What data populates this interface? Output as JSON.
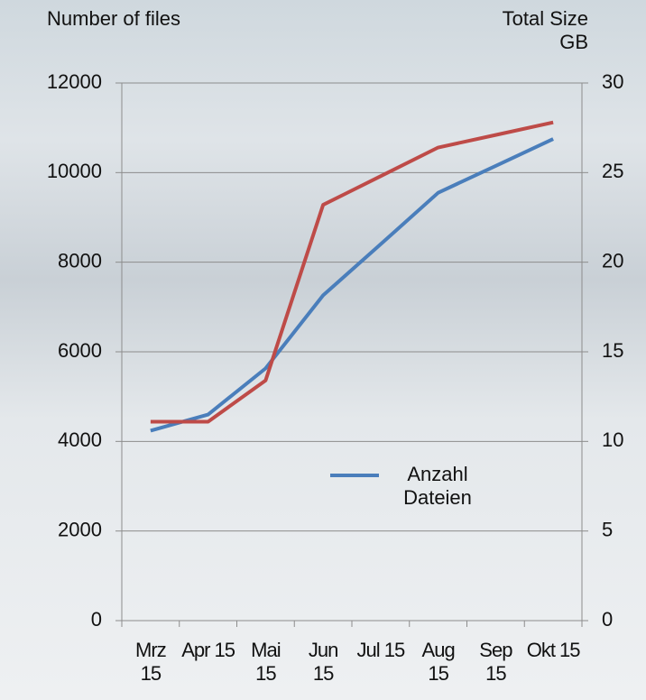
{
  "chart_data": {
    "type": "line",
    "y_label": "Number of files",
    "y2_label": "Total Size GB",
    "categories": [
      "Mrz 15",
      "Apr 15",
      "Mai 15",
      "Jun 15",
      "Jul 15",
      "Aug 15",
      "Sep 15",
      "Okt 15"
    ],
    "series": [
      {
        "name": "Anzahl Dateien",
        "color": "#4a7ebb",
        "values": [
          4240,
          4600,
          5630,
          7260,
          8400,
          9550,
          10150,
          10750
        ]
      },
      {
        "color": "#be4b48",
        "axis": "y2",
        "values": [
          11.1,
          11.1,
          13.4,
          23.2,
          24.8,
          26.4,
          27.1,
          27.8
        ]
      }
    ],
    "ylim": [
      0,
      12000
    ],
    "yticks": [
      0,
      2000,
      4000,
      6000,
      8000,
      10000,
      12000
    ],
    "y2lim": [
      0,
      30
    ],
    "y2ticks": [
      0,
      5,
      10,
      15,
      20,
      25,
      30
    ],
    "grid": true
  }
}
